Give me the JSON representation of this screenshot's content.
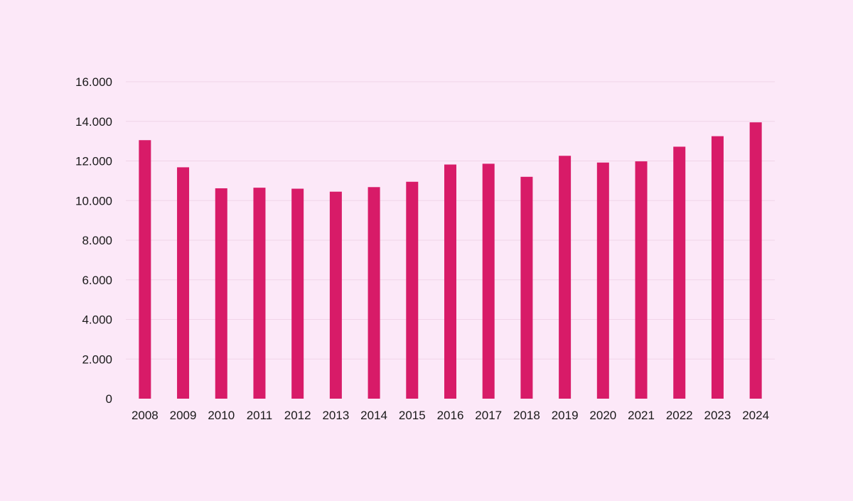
{
  "background_color": "#fce8f8",
  "chart_data": {
    "type": "bar",
    "title": "",
    "xlabel": "",
    "ylabel": "",
    "categories": [
      "2008",
      "2009",
      "2010",
      "2011",
      "2012",
      "2013",
      "2014",
      "2015",
      "2016",
      "2017",
      "2018",
      "2019",
      "2020",
      "2021",
      "2022",
      "2023",
      "2024"
    ],
    "values": [
      13050,
      11680,
      10620,
      10650,
      10600,
      10450,
      10680,
      10950,
      11820,
      11860,
      11200,
      12260,
      11920,
      11980,
      12720,
      13250,
      13950
    ],
    "ylim": [
      0,
      16000
    ],
    "yticks": [
      0,
      2000,
      4000,
      6000,
      8000,
      10000,
      12000,
      14000,
      16000
    ],
    "ytick_labels": [
      "0",
      "2.000",
      "4.000",
      "6.000",
      "8.000",
      "10.000",
      "12.000",
      "14.000",
      "16.000"
    ],
    "bar_color": "#d81b68",
    "grid": true,
    "gridline_color": "#f0d4e8",
    "legend": "none"
  }
}
